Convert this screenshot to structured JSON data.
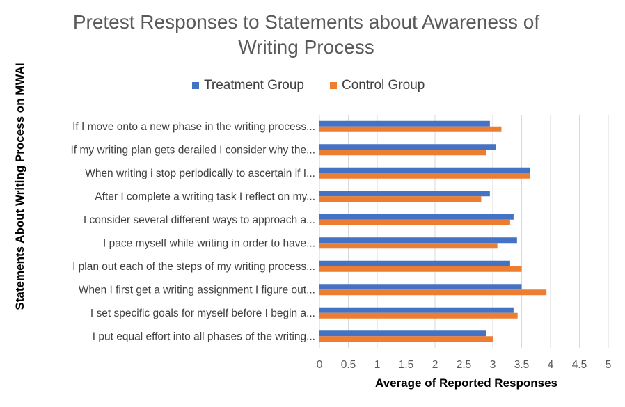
{
  "chart_data": {
    "type": "bar",
    "orientation": "horizontal",
    "title": "Pretest Responses to Statements about Awareness of Writing Process",
    "xlabel": "Average of Reported Responses",
    "ylabel": "Statements About Writing Process on MWAI",
    "xlim": [
      0,
      5
    ],
    "x_ticks": [
      "0",
      "0.5",
      "1",
      "1.5",
      "2",
      "2.5",
      "3",
      "3.5",
      "4",
      "4.5",
      "5"
    ],
    "grid": "vertical",
    "legend_position": "top",
    "categories": [
      "If I move onto a new phase in the writing process...",
      "If my writing plan gets derailed I consider why the...",
      "When writing i stop periodically to ascertain if I...",
      "After I complete a writing task I reflect on my...",
      "I consider several different ways to approach a...",
      "I pace myself while writing in order to have...",
      "I plan out each of the steps of my writing process...",
      "When I first get a writing assignment I figure out...",
      "I set specific goals for myself before I begin a...",
      "I put equal effort into all phases of the writing..."
    ],
    "series": [
      {
        "name": "Treatment Group",
        "color": "#4472C4",
        "values": [
          2.95,
          3.06,
          3.65,
          2.95,
          3.36,
          3.42,
          3.3,
          3.5,
          3.36,
          2.89
        ]
      },
      {
        "name": "Control Group",
        "color": "#ED7D31",
        "values": [
          3.15,
          2.88,
          3.65,
          2.8,
          3.3,
          3.08,
          3.5,
          3.93,
          3.43,
          3.0
        ]
      }
    ]
  }
}
